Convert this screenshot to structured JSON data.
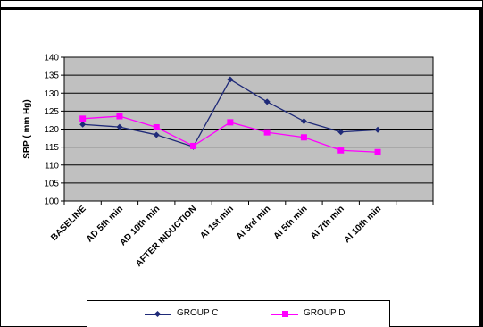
{
  "chart_data": {
    "type": "line",
    "categories": [
      "BASELINE",
      "AD 5th min",
      "AD 10th min",
      "AFTER INDUCTION",
      "AI 1st min",
      "AI 3rd min",
      "AI 5th min",
      "AI 7th min",
      "AI 10th min"
    ],
    "series": [
      {
        "name": "GROUP C",
        "values": [
          121.3,
          120.6,
          118.4,
          115.1,
          133.8,
          127.6,
          122.2,
          119.2,
          119.8
        ],
        "color": "#1f2a78",
        "marker": "diamond"
      },
      {
        "name": "GROUP D",
        "values": [
          122.9,
          123.6,
          120.5,
          115.3,
          121.9,
          119.1,
          117.7,
          114.1,
          113.6
        ],
        "color": "#ff00ff",
        "marker": "square"
      }
    ],
    "title": "",
    "xlabel": "",
    "ylabel": "SBP ( mm Hg)",
    "ylim": [
      100,
      140
    ],
    "yticks": [
      100,
      105,
      110,
      115,
      120,
      125,
      130,
      135,
      140
    ],
    "grid": true,
    "plot_background": "#c0c0c0",
    "legend_position": "bottom"
  }
}
